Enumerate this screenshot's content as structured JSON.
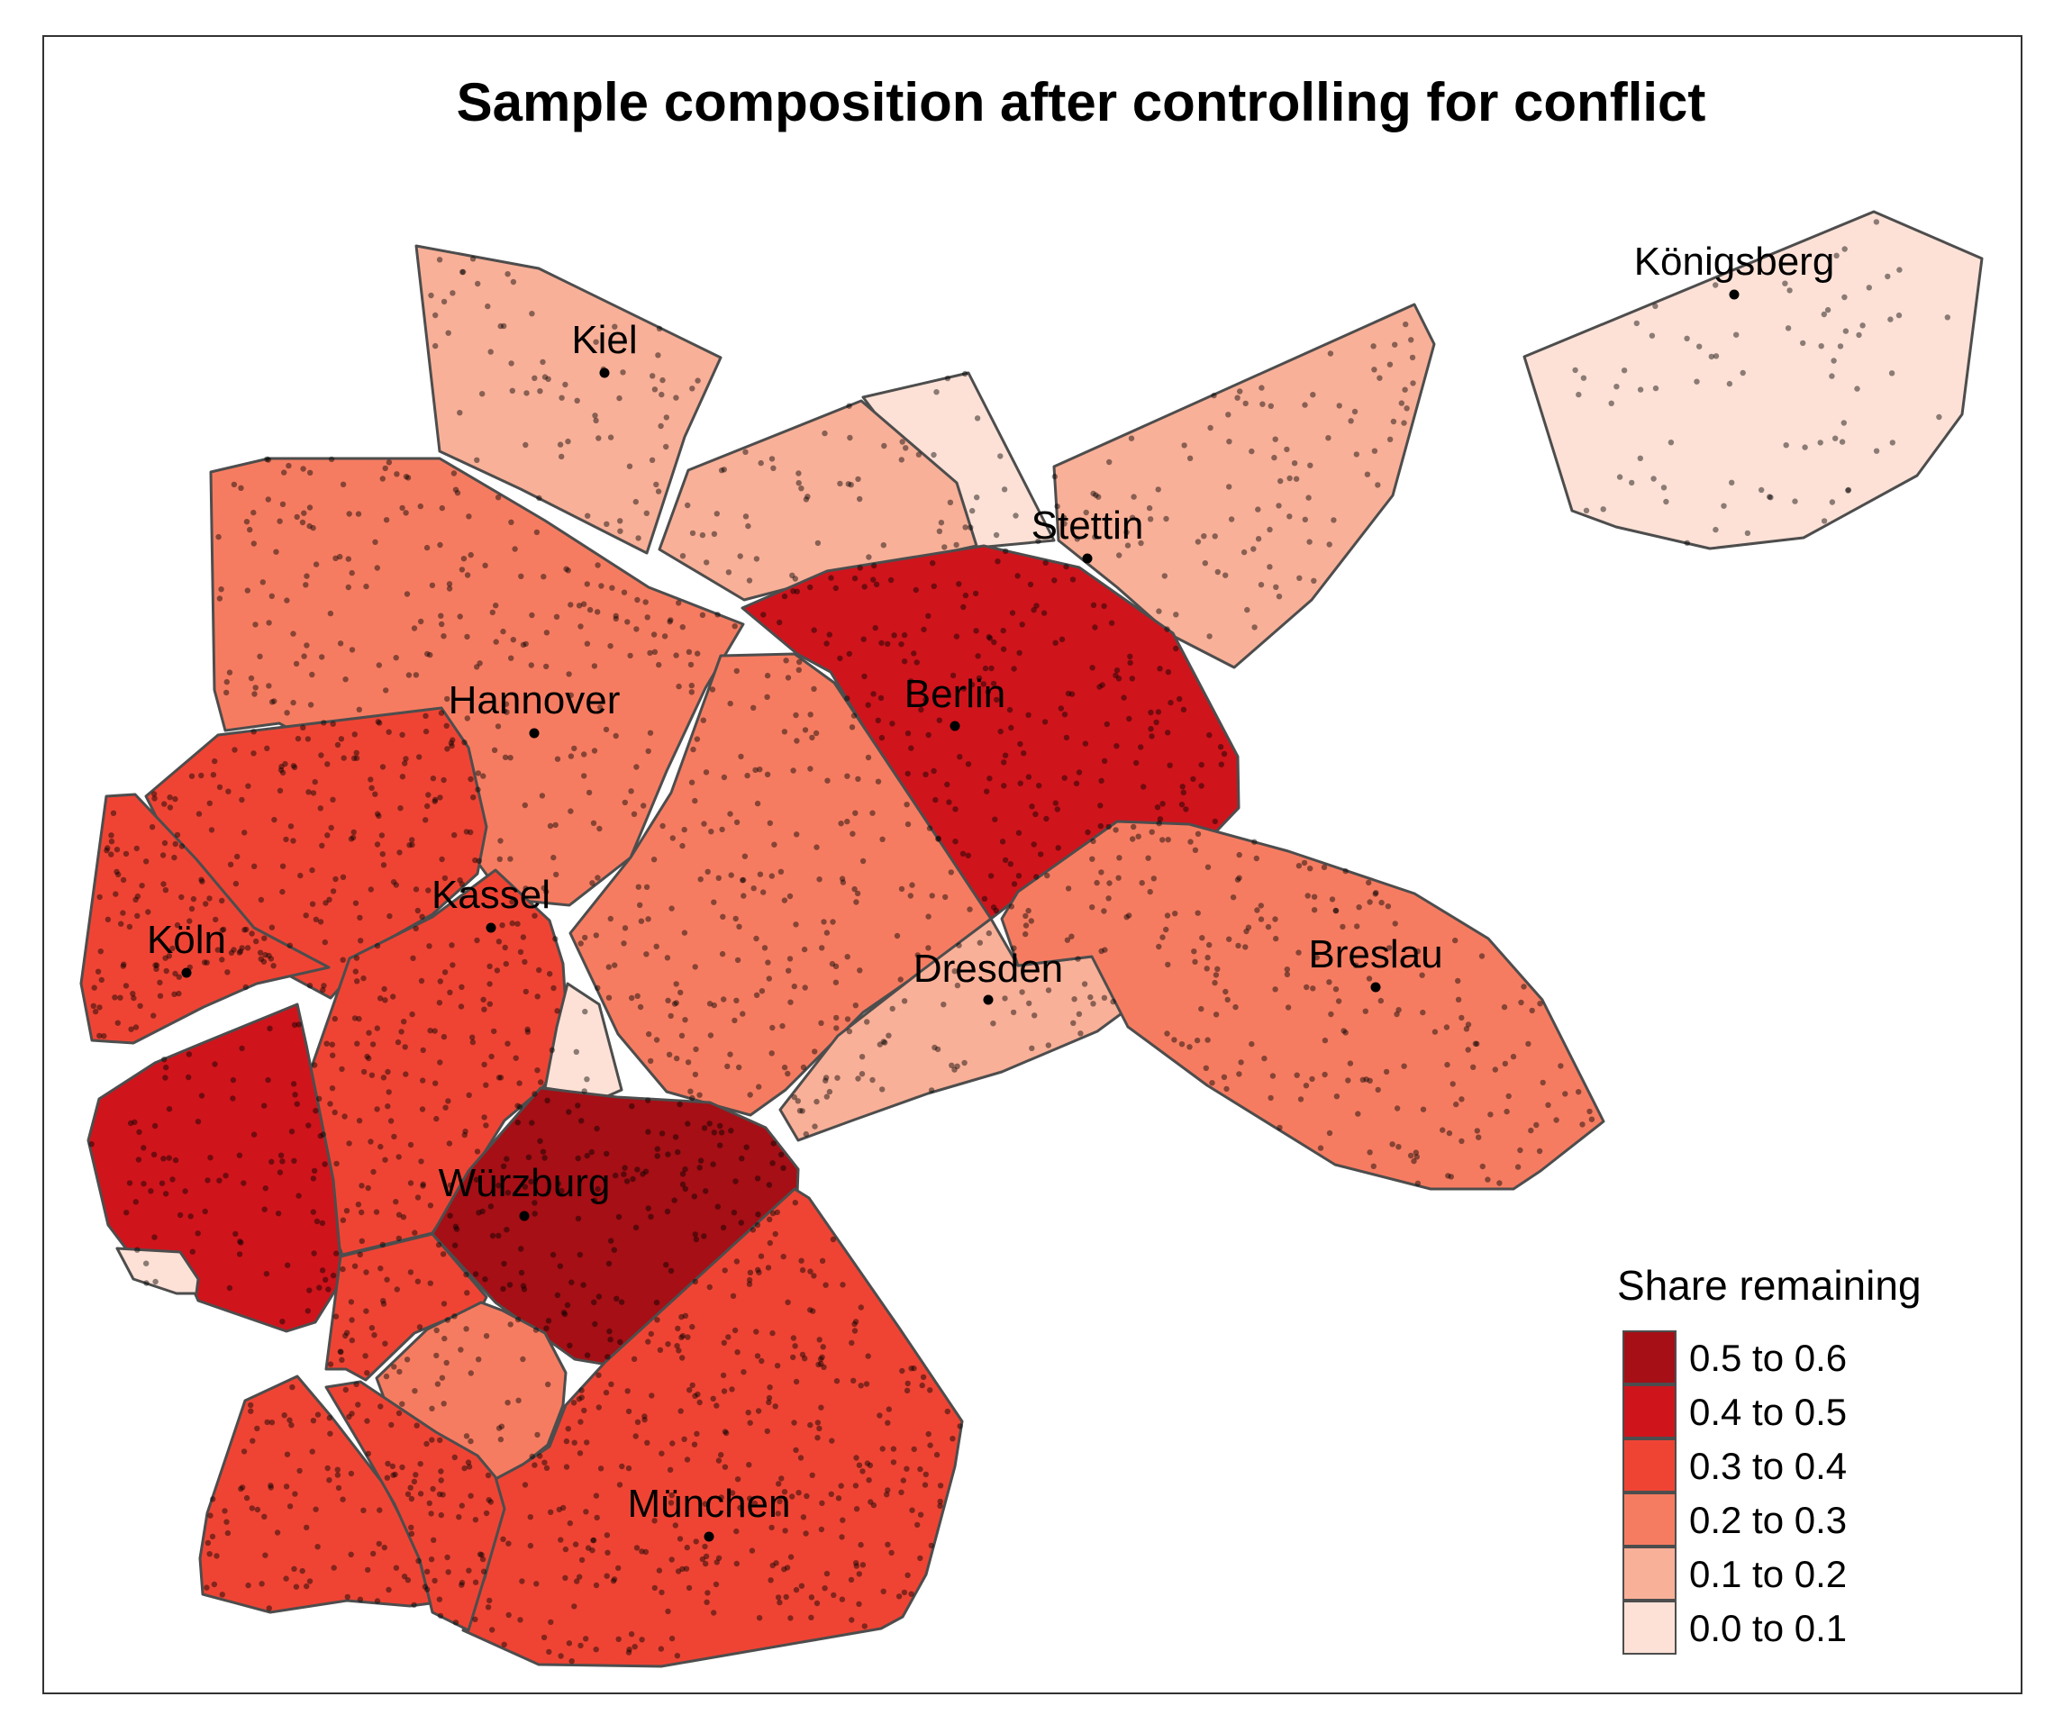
{
  "title": "Sample composition after controlling for conflict",
  "legend": {
    "title": "Share remaining",
    "bins": [
      {
        "label": "0.5 to 0.6",
        "color": "#a50f15"
      },
      {
        "label": "0.4 to 0.5",
        "color": "#d0141c"
      },
      {
        "label": "0.3 to 0.4",
        "color": "#ef4434"
      },
      {
        "label": "0.2 to 0.3",
        "color": "#f67c61"
      },
      {
        "label": "0.1 to 0.2",
        "color": "#f9b098"
      },
      {
        "label": "0.0 to 0.1",
        "color": "#fde1d6"
      }
    ]
  },
  "cities": [
    {
      "name": "Königsberg"
    },
    {
      "name": "Kiel"
    },
    {
      "name": "Stettin"
    },
    {
      "name": "Berlin"
    },
    {
      "name": "Hannover"
    },
    {
      "name": "Kassel"
    },
    {
      "name": "Köln"
    },
    {
      "name": "Dresden"
    },
    {
      "name": "Breslau"
    },
    {
      "name": "Würzburg"
    },
    {
      "name": "München"
    }
  ]
}
